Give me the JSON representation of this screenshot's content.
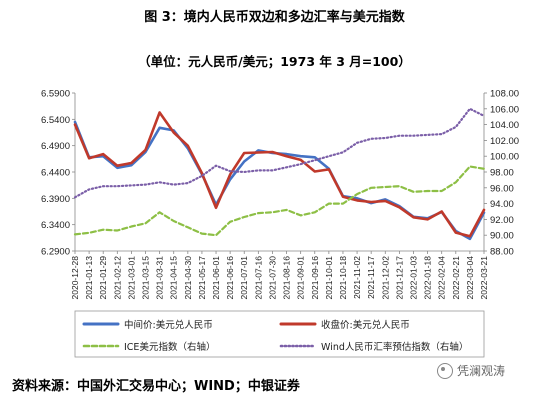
{
  "title": "图 3：境内人民币双边和多边汇率与美元指数",
  "subtitle": "（单位：元人民币/美元；1973 年 3 月=100）",
  "source": "资料来源：中国外汇交易中心；WIND；中银证券",
  "watermark": {
    "text": "凭澜观涛",
    "icon": "wechat-icon"
  },
  "chart_data": {
    "type": "line",
    "x": [
      "2020-12-28",
      "2021-01-13",
      "2021-01-29",
      "2021-02-12",
      "2021-03-01",
      "2021-03-15",
      "2021-03-31",
      "2021-04-15",
      "2021-04-30",
      "2021-05-17",
      "2021-06-01",
      "2021-06-16",
      "2021-07-01",
      "2021-07-16",
      "2021-07-30",
      "2021-08-16",
      "2021-09-01",
      "2021-09-16",
      "2021-10-01",
      "2021-10-18",
      "2021-11-02",
      "2021-11-17",
      "2021-12-02",
      "2021-12-17",
      "2022-01-03",
      "2022-01-18",
      "2022-02-04",
      "2022-02-21",
      "2022-03-04",
      "2022-03-21"
    ],
    "x_tick_labels": [
      "2020-12-28",
      "2021-01-13",
      "2021-01-29",
      "2021-02-12",
      "2021-03-01",
      "2021-03-15",
      "2021-03-31",
      "2021-04-15",
      "2021-04-30",
      "2021-05-17",
      "2021-06-01",
      "2021-06-16",
      "2021-07-01",
      "2021-07-16",
      "2021-07-30",
      "2021-08-16",
      "2021-09-01",
      "2021-09-16",
      "2021-10-01",
      "2021-10-18",
      "2021-11-02",
      "2021-11-17",
      "2021-12-02",
      "2021-12-17",
      "2022-01-03",
      "2022-01-18",
      "2022-02-04",
      "2022-02-21",
      "2022-03-04",
      "2022-03-21"
    ],
    "y_left": {
      "ylim": [
        6.29,
        6.59
      ],
      "ticks": [
        "6.2900",
        "6.3400",
        "6.3900",
        "6.4400",
        "6.4900",
        "6.5400",
        "6.5900"
      ]
    },
    "y_right": {
      "ylim": [
        88,
        108
      ],
      "ticks": [
        "88.00",
        "90.00",
        "92.00",
        "94.00",
        "96.00",
        "98.00",
        "100.00",
        "102.00",
        "104.00",
        "106.00",
        "108.00"
      ]
    },
    "grid": false,
    "legend_position": "bottom",
    "series": [
      {
        "name": "中间价:美元兑人民币",
        "axis": "left",
        "style": "solid",
        "color": "#4472C4",
        "values": [
          6.535,
          6.468,
          6.47,
          6.448,
          6.453,
          6.478,
          6.524,
          6.519,
          6.485,
          6.436,
          6.378,
          6.426,
          6.46,
          6.481,
          6.476,
          6.474,
          6.47,
          6.468,
          6.446,
          6.394,
          6.39,
          6.381,
          6.388,
          6.375,
          6.355,
          6.352,
          6.364,
          6.328,
          6.313,
          6.363
        ]
      },
      {
        "name": "收盘价:美元兑人民币",
        "axis": "left",
        "style": "solid",
        "color": "#C0392B",
        "values": [
          6.53,
          6.466,
          6.474,
          6.452,
          6.457,
          6.482,
          6.553,
          6.515,
          6.49,
          6.438,
          6.372,
          6.435,
          6.476,
          6.477,
          6.478,
          6.47,
          6.463,
          6.441,
          6.445,
          6.393,
          6.386,
          6.383,
          6.385,
          6.373,
          6.354,
          6.35,
          6.365,
          6.325,
          6.318,
          6.368
        ]
      },
      {
        "name": "ICE美元指数（右轴）",
        "axis": "right",
        "style": "dashed",
        "color": "#8DBF45",
        "values": [
          90.1,
          90.3,
          90.7,
          90.6,
          91.1,
          91.5,
          92.9,
          91.8,
          91.0,
          90.2,
          90.0,
          91.7,
          92.3,
          92.8,
          92.9,
          93.2,
          92.5,
          92.9,
          94.0,
          94.0,
          95.2,
          96.0,
          96.1,
          96.2,
          95.5,
          95.6,
          95.6,
          96.7,
          98.7,
          98.4
        ]
      },
      {
        "name": "Wind人民币汇率预估指数（右轴）",
        "axis": "right",
        "style": "dotted",
        "color": "#7B5FA8",
        "values": [
          94.8,
          95.8,
          96.2,
          96.2,
          96.3,
          96.4,
          96.7,
          96.4,
          96.6,
          97.5,
          98.8,
          98.1,
          98.0,
          98.2,
          98.2,
          98.6,
          99.0,
          99.5,
          100.0,
          100.5,
          101.7,
          102.2,
          102.3,
          102.6,
          102.6,
          102.7,
          102.8,
          103.7,
          106.0,
          105.1
        ]
      }
    ]
  }
}
